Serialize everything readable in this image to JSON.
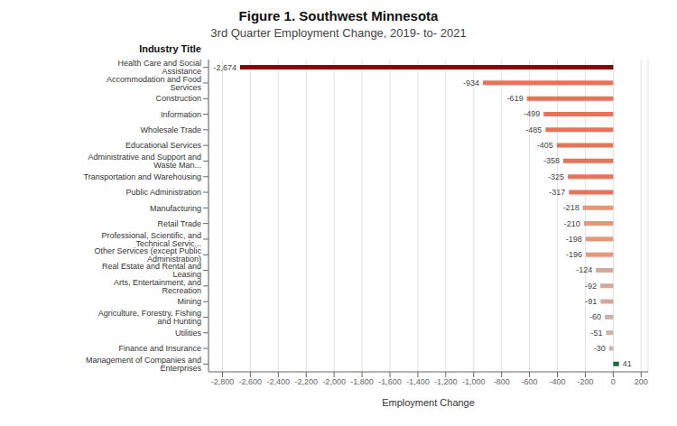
{
  "chart_data": {
    "type": "bar",
    "orientation": "horizontal",
    "title": "Figure 1. Southwest Minnesota",
    "subtitle": "3rd Quarter Employment Change, 2019- to- 2021",
    "xlabel": "Employment Change",
    "ylabel": "Industry Title",
    "categories": [
      "Health Care and Social Assistance",
      "Accommodation and Food Services",
      "Construction",
      "Information",
      "Wholesale Trade",
      "Educational Services",
      "Administrative and Support and Waste Man...",
      "Transportation and Warehousing",
      "Public Administration",
      "Manufacturing",
      "Retail Trade",
      "Professional, Scientific, and Technical Servic...",
      "Other Services (except Public Administration)",
      "Real Estate and Rental and Leasing",
      "Arts, Entertainment, and Recreation",
      "Mining",
      "Agriculture, Forestry, Fishing and Hunting",
      "Utilities",
      "Finance and Insurance",
      "Management of Companies and Enterprises"
    ],
    "values": [
      -2674,
      -934,
      -619,
      -499,
      -485,
      -405,
      -358,
      -325,
      -317,
      -218,
      -210,
      -198,
      -196,
      -124,
      -92,
      -91,
      -60,
      -51,
      -30,
      41
    ],
    "value_labels": [
      "-2,674",
      "-934",
      "-619",
      "-499",
      "-485",
      "-405",
      "-358",
      "-325",
      "-317",
      "-218",
      "-210",
      "-198",
      "-196",
      "-124",
      "-92",
      "-91",
      "-60",
      "-51",
      "-30",
      "41"
    ],
    "colors": [
      "#8b0000",
      "#e8735a",
      "#e8735a",
      "#e8735a",
      "#e8735a",
      "#e8735a",
      "#e8735a",
      "#e8735a",
      "#e8735a",
      "#e8957a",
      "#e8957a",
      "#e8957a",
      "#e8957a",
      "#d4a898",
      "#d4a898",
      "#d4a898",
      "#c8b5a8",
      "#c8b5a8",
      "#c8b5a8",
      "#1a6b3c"
    ],
    "xlim": [
      -2900,
      250
    ],
    "xticks": [
      {
        "value": -2800,
        "label": "-2,800"
      },
      {
        "value": -2600,
        "label": "-2,600"
      },
      {
        "value": -2400,
        "label": "-2,400"
      },
      {
        "value": -2200,
        "label": "-2,200"
      },
      {
        "value": -2000,
        "label": "-2,000"
      },
      {
        "value": -1800,
        "label": "-1,800"
      },
      {
        "value": -1600,
        "label": "-1,600"
      },
      {
        "value": -1400,
        "label": "-1,400"
      },
      {
        "value": -1200,
        "label": "-1,200"
      },
      {
        "value": -1000,
        "label": "-1,000"
      },
      -800,
      -600,
      -400,
      -200,
      0,
      200
    ],
    "grid": true,
    "data_labels": true
  }
}
